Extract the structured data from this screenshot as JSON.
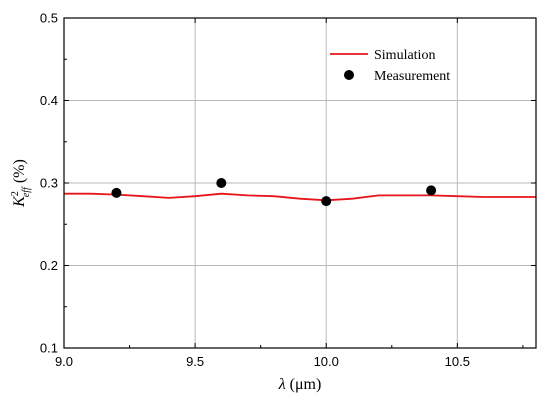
{
  "chart_data": {
    "type": "line",
    "title": "",
    "xlabel": {
      "symbol": "λ",
      "unit": " (μm)"
    },
    "ylabel": {
      "base": "K",
      "sup": "2",
      "sub": "eff",
      "unit": " (%)"
    },
    "xlim": [
      9.0,
      10.8
    ],
    "ylim": [
      0.1,
      0.5
    ],
    "x_ticks": [
      9.0,
      9.5,
      10.0,
      10.5
    ],
    "x_tick_labels": [
      "9.0",
      "9.5",
      "10.0",
      "10.5"
    ],
    "y_ticks": [
      0.1,
      0.2,
      0.3,
      0.4,
      0.5
    ],
    "y_tick_labels": [
      "0.1",
      "0.2",
      "0.3",
      "0.4",
      "0.5"
    ],
    "grid": true,
    "legend_position": "top-right",
    "series": [
      {
        "name": "Simulation",
        "kind": "line",
        "color": "#e8141c",
        "x": [
          9.0,
          9.1,
          9.2,
          9.3,
          9.4,
          9.5,
          9.6,
          9.7,
          9.8,
          9.9,
          10.0,
          10.1,
          10.2,
          10.3,
          10.4,
          10.5,
          10.6,
          10.7,
          10.8
        ],
        "y": [
          0.287,
          0.287,
          0.286,
          0.284,
          0.282,
          0.284,
          0.287,
          0.285,
          0.284,
          0.281,
          0.279,
          0.281,
          0.285,
          0.285,
          0.285,
          0.284,
          0.283,
          0.283,
          0.283
        ]
      },
      {
        "name": "Measurement",
        "kind": "scatter",
        "color": "#000000",
        "x": [
          9.2,
          9.6,
          10.0,
          10.4
        ],
        "y": [
          0.288,
          0.3,
          0.278,
          0.291
        ]
      }
    ]
  }
}
